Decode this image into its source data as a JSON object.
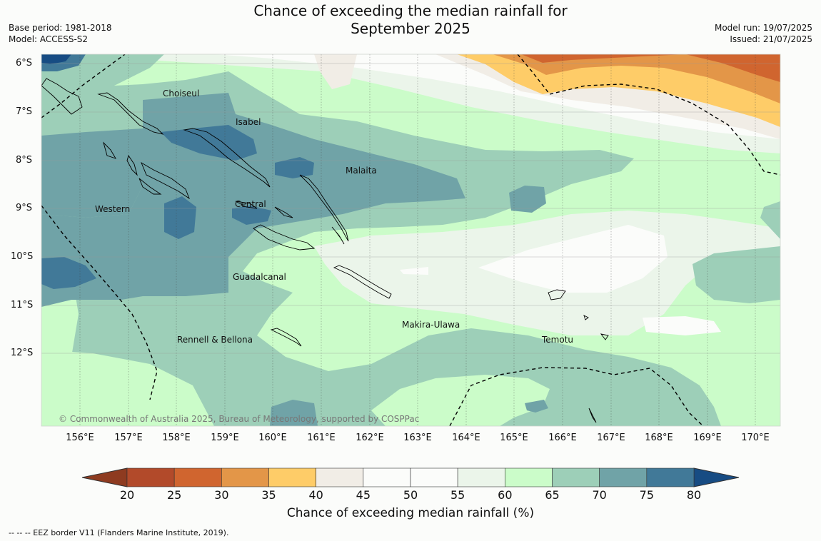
{
  "title_line1": "Chance of exceeding the median rainfall for",
  "title_line2": "September 2025",
  "base_period": "Base period: 1981-2018",
  "model": "Model: ACCESS-S2",
  "model_run": "Model run: 19/07/2025",
  "issued": "Issued: 21/07/2025",
  "lat_labels": [
    "6°S",
    "7°S",
    "8°S",
    "9°S",
    "10°S",
    "11°S",
    "12°S"
  ],
  "lon_labels": [
    "156°E",
    "157°E",
    "158°E",
    "159°E",
    "160°E",
    "161°E",
    "162°E",
    "163°E",
    "164°E",
    "165°E",
    "166°E",
    "167°E",
    "168°E",
    "169°E",
    "170°E"
  ],
  "places": [
    "Choiseul",
    "Isabel",
    "Malaita",
    "Western",
    "Central",
    "Guadalcanal",
    "Makira-Ulawa",
    "Rennell & Bellona",
    "Temotu"
  ],
  "copyright": "© Commonwealth of Australia 2025, Bureau of Meteorology, supported by COSPPac",
  "colorbar": {
    "ticks": [
      "20",
      "25",
      "30",
      "35",
      "40",
      "45",
      "50",
      "55",
      "60",
      "65",
      "70",
      "75",
      "80"
    ],
    "colors": [
      "#b24a2a",
      "#d0652f",
      "#e39648",
      "#fecc68",
      "#f1ede6",
      "#fbfcfa",
      "#fbfcfa",
      "#ebf5ea",
      "#cbfcc9",
      "#9dcfb8",
      "#70a3a7",
      "#417998",
      "#174c83"
    ],
    "under_color": "#8e3b20",
    "over_color": "#174c83",
    "label": "Chance of exceeding median rainfall (%)"
  },
  "footer": "--  --  -- EEZ border V11 (Flanders Marine Institute, 2019)."
}
